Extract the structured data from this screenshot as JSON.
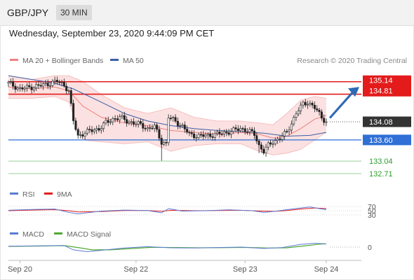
{
  "header": {
    "symbol": "GBP/JPY",
    "interval": "30 MIN"
  },
  "datetime": "Wednesday, September 23, 2020 9:44:09 PM CET",
  "legend": {
    "ma20": "MA 20 + Bollinger Bands",
    "ma50": "MA 50",
    "copyright": "Research © 2020 Trading Central",
    "rsi": "RSI",
    "rsi_ma": "9MA",
    "macd": "MACD",
    "macd_signal": "MACD Signal"
  },
  "colors": {
    "resistance": "#e31b1b",
    "support": "#2f6fd6",
    "target_green": "#2e9b2e",
    "current": "#333333",
    "candle": "#222222",
    "bollinger": "#f8c9c9",
    "ma20": "#f08080",
    "ma50": "#3b5ea8",
    "rsi": "#5b7bd5",
    "macd": "#5b7bd5",
    "macd_signal": "#52a832",
    "arrow": "#2e6ab5"
  },
  "chart_data": [
    {
      "type": "candlestick",
      "title": "GBP/JPY",
      "ylim": [
        132.45,
        135.45
      ],
      "x_ticks": [
        "Sep 20",
        "Sep 22",
        "Sep 23",
        "Sep 24"
      ],
      "levels": [
        {
          "value": 135.14,
          "label": "135.14",
          "kind": "resistance"
        },
        {
          "value": 134.81,
          "label": "134.81",
          "kind": "resistance"
        },
        {
          "value": 134.08,
          "label": "134.08",
          "kind": "current"
        },
        {
          "value": 133.6,
          "label": "133.60",
          "kind": "support"
        },
        {
          "value": 133.04,
          "label": "133.04",
          "kind": "target"
        },
        {
          "value": 132.71,
          "label": "132.71",
          "kind": "target"
        }
      ],
      "close_path": [
        [
          0,
          135.1
        ],
        [
          5,
          134.95
        ],
        [
          10,
          135.0
        ],
        [
          15,
          135.05
        ],
        [
          18,
          135.1
        ],
        [
          21,
          135.15
        ],
        [
          24,
          135.05
        ],
        [
          26,
          134.9
        ],
        [
          28,
          134.1
        ],
        [
          30,
          133.7
        ],
        [
          33,
          133.8
        ],
        [
          36,
          133.85
        ],
        [
          39,
          133.9
        ],
        [
          42,
          134.05
        ],
        [
          45,
          134.15
        ],
        [
          48,
          134.2
        ],
        [
          51,
          134.1
        ],
        [
          54,
          134.05
        ],
        [
          57,
          134.0
        ],
        [
          60,
          133.9
        ],
        [
          63,
          133.95
        ],
        [
          66,
          133.55
        ],
        [
          68,
          133.5
        ],
        [
          69,
          134.2
        ],
        [
          72,
          134.1
        ],
        [
          75,
          133.95
        ],
        [
          78,
          133.75
        ],
        [
          82,
          133.7
        ],
        [
          86,
          133.72
        ],
        [
          90,
          133.75
        ],
        [
          94,
          133.8
        ],
        [
          97,
          133.85
        ],
        [
          100,
          133.9
        ],
        [
          103,
          133.85
        ],
        [
          106,
          133.75
        ],
        [
          108,
          133.45
        ],
        [
          110,
          133.3
        ],
        [
          112,
          133.45
        ],
        [
          114,
          133.55
        ],
        [
          117,
          133.65
        ],
        [
          120,
          133.8
        ],
        [
          124,
          134.3
        ],
        [
          127,
          134.55
        ],
        [
          129,
          134.6
        ],
        [
          132,
          134.45
        ],
        [
          135,
          134.2
        ],
        [
          137,
          134.08
        ]
      ],
      "ma20": [
        [
          0,
          135.0
        ],
        [
          10,
          134.95
        ],
        [
          20,
          135.0
        ],
        [
          26,
          134.9
        ],
        [
          32,
          134.5
        ],
        [
          40,
          134.2
        ],
        [
          50,
          134.05
        ],
        [
          60,
          133.98
        ],
        [
          70,
          133.85
        ],
        [
          80,
          133.8
        ],
        [
          90,
          133.75
        ],
        [
          100,
          133.8
        ],
        [
          108,
          133.75
        ],
        [
          114,
          133.65
        ],
        [
          120,
          133.7
        ],
        [
          126,
          133.9
        ],
        [
          132,
          134.15
        ],
        [
          137,
          134.25
        ]
      ],
      "ma50": [
        [
          0,
          135.3
        ],
        [
          10,
          135.2
        ],
        [
          20,
          135.1
        ],
        [
          28,
          134.95
        ],
        [
          40,
          134.6
        ],
        [
          50,
          134.3
        ],
        [
          60,
          134.1
        ],
        [
          70,
          133.98
        ],
        [
          80,
          133.9
        ],
        [
          90,
          133.85
        ],
        [
          100,
          133.82
        ],
        [
          110,
          133.78
        ],
        [
          120,
          133.7
        ],
        [
          130,
          133.72
        ],
        [
          137,
          133.8
        ]
      ],
      "bollinger_upper": [
        [
          0,
          135.3
        ],
        [
          10,
          135.2
        ],
        [
          20,
          135.3
        ],
        [
          26,
          135.3
        ],
        [
          32,
          135.15
        ],
        [
          40,
          134.8
        ],
        [
          50,
          134.45
        ],
        [
          60,
          134.3
        ],
        [
          70,
          134.45
        ],
        [
          80,
          134.2
        ],
        [
          90,
          134.1
        ],
        [
          100,
          134.1
        ],
        [
          108,
          134.05
        ],
        [
          114,
          134.0
        ],
        [
          120,
          134.3
        ],
        [
          126,
          134.65
        ],
        [
          132,
          134.75
        ],
        [
          137,
          134.7
        ]
      ],
      "bollinger_lower": [
        [
          0,
          134.7
        ],
        [
          10,
          134.7
        ],
        [
          20,
          134.75
        ],
        [
          26,
          134.6
        ],
        [
          32,
          133.6
        ],
        [
          40,
          133.55
        ],
        [
          50,
          133.5
        ],
        [
          60,
          133.55
        ],
        [
          70,
          133.3
        ],
        [
          80,
          133.45
        ],
        [
          90,
          133.5
        ],
        [
          100,
          133.5
        ],
        [
          108,
          133.3
        ],
        [
          114,
          133.2
        ],
        [
          120,
          133.25
        ],
        [
          126,
          133.35
        ],
        [
          132,
          133.6
        ],
        [
          137,
          133.8
        ]
      ]
    },
    {
      "type": "line",
      "title": "RSI",
      "ylim": [
        0,
        100
      ],
      "y_ticks": [
        30,
        50,
        70
      ],
      "series": [
        {
          "name": "RSI",
          "points": [
            [
              0,
              52
            ],
            [
              10,
              56
            ],
            [
              20,
              58
            ],
            [
              26,
              42
            ],
            [
              30,
              35
            ],
            [
              40,
              48
            ],
            [
              50,
              53
            ],
            [
              60,
              51
            ],
            [
              66,
              40
            ],
            [
              69,
              60
            ],
            [
              75,
              48
            ],
            [
              85,
              50
            ],
            [
              95,
              54
            ],
            [
              105,
              50
            ],
            [
              110,
              42
            ],
            [
              115,
              47
            ],
            [
              120,
              55
            ],
            [
              126,
              63
            ],
            [
              130,
              68
            ],
            [
              134,
              60
            ],
            [
              137,
              55
            ]
          ]
        },
        {
          "name": "9MA",
          "points": [
            [
              0,
              50
            ],
            [
              10,
              53
            ],
            [
              20,
              55
            ],
            [
              26,
              50
            ],
            [
              30,
              44
            ],
            [
              40,
              46
            ],
            [
              50,
              51
            ],
            [
              60,
              51
            ],
            [
              66,
              47
            ],
            [
              70,
              52
            ],
            [
              80,
              50
            ],
            [
              90,
              51
            ],
            [
              100,
              52
            ],
            [
              110,
              48
            ],
            [
              115,
              47
            ],
            [
              120,
              51
            ],
            [
              126,
              58
            ],
            [
              132,
              63
            ],
            [
              137,
              60
            ]
          ]
        }
      ]
    },
    {
      "type": "line",
      "title": "MACD",
      "ylim": [
        -1,
        1
      ],
      "y_ticks": [
        0
      ],
      "series": [
        {
          "name": "MACD",
          "points": [
            [
              0,
              0.1
            ],
            [
              15,
              0.15
            ],
            [
              24,
              0.18
            ],
            [
              28,
              -0.3
            ],
            [
              34,
              -0.5
            ],
            [
              40,
              -0.35
            ],
            [
              50,
              -0.1
            ],
            [
              60,
              0.05
            ],
            [
              70,
              -0.08
            ],
            [
              80,
              -0.1
            ],
            [
              90,
              -0.05
            ],
            [
              100,
              0.0
            ],
            [
              110,
              -0.15
            ],
            [
              118,
              -0.05
            ],
            [
              126,
              0.3
            ],
            [
              132,
              0.42
            ],
            [
              137,
              0.35
            ]
          ]
        },
        {
          "name": "MACD Signal",
          "points": [
            [
              0,
              0.08
            ],
            [
              15,
              0.12
            ],
            [
              24,
              0.16
            ],
            [
              30,
              -0.05
            ],
            [
              36,
              -0.3
            ],
            [
              44,
              -0.3
            ],
            [
              54,
              -0.15
            ],
            [
              62,
              -0.02
            ],
            [
              72,
              -0.05
            ],
            [
              82,
              -0.08
            ],
            [
              92,
              -0.06
            ],
            [
              102,
              -0.03
            ],
            [
              112,
              -0.1
            ],
            [
              120,
              -0.08
            ],
            [
              128,
              0.15
            ],
            [
              134,
              0.32
            ],
            [
              137,
              0.36
            ]
          ]
        }
      ]
    }
  ]
}
